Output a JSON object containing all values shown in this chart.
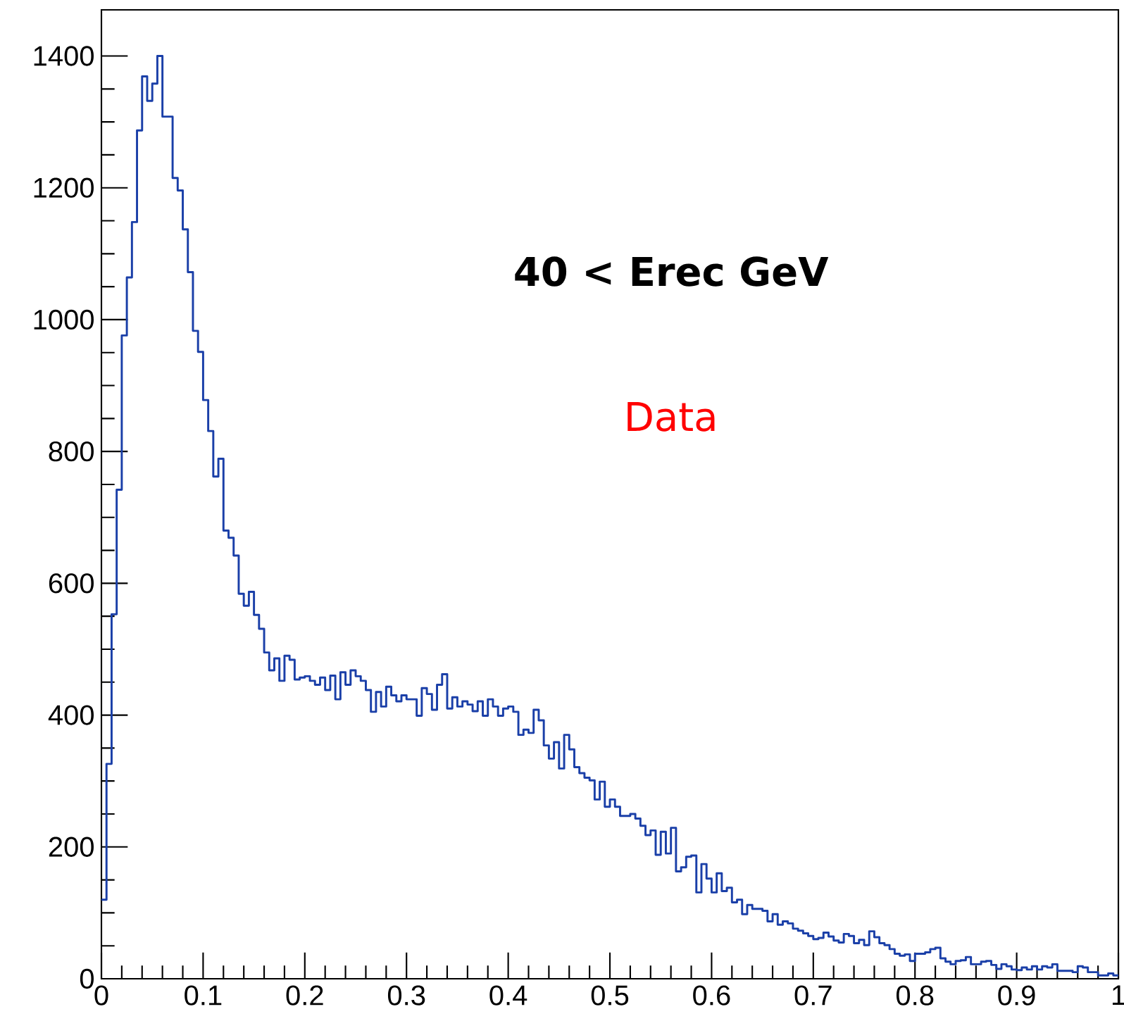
{
  "chart_data": {
    "type": "histogram",
    "color": "#1a3fa8",
    "annotations": [
      "40 < Erec  GeV",
      "Data"
    ],
    "bins": [
      0,
      0.005,
      0.01,
      0.015,
      0.02,
      0.025,
      0.03,
      0.035,
      0.04,
      0.045,
      0.05,
      0.055,
      0.06,
      0.065,
      0.07,
      0.075,
      0.08,
      0.085,
      0.09,
      0.095,
      0.1,
      0.105,
      0.11,
      0.115,
      0.12,
      0.125,
      0.13,
      0.135,
      0.14,
      0.145,
      0.15,
      0.155,
      0.16,
      0.165,
      0.17,
      0.175,
      0.18,
      0.185,
      0.19,
      0.195,
      0.2,
      0.205,
      0.21,
      0.215,
      0.22,
      0.225,
      0.23,
      0.235,
      0.24,
      0.245,
      0.25,
      0.255,
      0.26,
      0.265,
      0.27,
      0.275,
      0.28,
      0.285,
      0.29,
      0.295,
      0.3,
      0.305,
      0.31,
      0.315,
      0.32,
      0.325,
      0.33,
      0.335,
      0.34,
      0.345,
      0.35,
      0.355,
      0.36,
      0.365,
      0.37,
      0.375,
      0.38,
      0.385,
      0.39,
      0.395,
      0.4,
      0.405,
      0.41,
      0.415,
      0.42,
      0.425,
      0.43,
      0.435,
      0.44,
      0.445,
      0.45,
      0.455,
      0.46,
      0.465,
      0.47,
      0.475,
      0.48,
      0.485,
      0.49,
      0.495,
      0.5,
      0.505,
      0.51,
      0.515,
      0.52,
      0.525,
      0.53,
      0.535,
      0.54,
      0.545,
      0.55,
      0.555,
      0.56,
      0.565,
      0.57,
      0.575,
      0.58,
      0.585,
      0.59,
      0.595,
      0.6,
      0.605,
      0.61,
      0.615,
      0.62,
      0.625,
      0.63,
      0.635,
      0.64,
      0.645,
      0.65,
      0.655,
      0.66,
      0.665,
      0.67,
      0.675,
      0.68,
      0.685,
      0.69,
      0.695,
      0.7,
      0.705,
      0.71,
      0.715,
      0.72,
      0.725,
      0.73,
      0.735,
      0.74,
      0.745,
      0.75,
      0.755,
      0.76,
      0.765,
      0.77,
      0.775,
      0.78,
      0.785,
      0.79,
      0.795,
      0.8,
      0.805,
      0.81,
      0.815,
      0.82,
      0.825,
      0.83,
      0.835,
      0.84,
      0.845,
      0.85,
      0.855,
      0.86,
      0.865,
      0.87,
      0.875,
      0.88,
      0.885,
      0.89,
      0.895,
      0.9,
      0.905,
      0.91,
      0.915,
      0.92,
      0.925,
      0.93,
      0.935,
      0.94,
      0.945,
      0.95,
      0.955,
      0.96,
      0.965,
      0.97,
      0.975,
      0.98,
      0.985,
      0.99,
      0.995,
      1
    ],
    "values": [
      120,
      326,
      553,
      742,
      976,
      1064,
      1148,
      1287,
      1369,
      1332,
      1358,
      1400,
      1308,
      1308,
      1215,
      1196,
      1137,
      1072,
      983,
      951,
      878,
      831,
      762,
      789,
      680,
      669,
      642,
      584,
      566,
      587,
      552,
      531,
      495,
      468,
      486,
      452,
      490,
      484,
      454,
      457,
      459,
      452,
      446,
      457,
      438,
      460,
      424,
      465,
      446,
      468,
      459,
      452,
      438,
      405,
      435,
      413,
      443,
      430,
      421,
      430,
      424,
      424,
      399,
      441,
      432,
      408,
      446,
      462,
      410,
      427,
      413,
      421,
      416,
      406,
      421,
      399,
      424,
      413,
      399,
      410,
      413,
      405,
      370,
      378,
      373,
      408,
      392,
      354,
      334,
      359,
      319,
      370,
      348,
      321,
      312,
      305,
      301,
      272,
      299,
      261,
      272,
      261,
      247,
      247,
      250,
      243,
      232,
      218,
      225,
      188,
      223,
      190,
      229,
      163,
      169,
      185,
      187,
      131,
      174,
      152,
      131,
      160,
      133,
      138,
      116,
      120,
      98,
      112,
      106,
      106,
      103,
      87,
      98,
      82,
      87,
      84,
      76,
      73,
      69,
      65,
      60,
      62,
      70,
      64,
      58,
      55,
      68,
      65,
      54,
      59,
      51,
      72,
      63,
      54,
      51,
      45,
      38,
      35,
      37,
      27,
      38,
      38,
      40,
      45,
      47,
      31,
      26,
      22,
      27,
      28,
      33,
      22,
      22,
      26,
      27,
      21,
      15,
      22,
      19,
      14,
      13,
      17,
      14,
      19,
      14,
      19,
      17,
      22,
      12,
      12,
      12,
      10,
      19,
      17,
      10,
      10,
      5,
      5,
      8,
      5
    ],
    "xlim": [
      0,
      1
    ],
    "ylim": [
      0,
      1470
    ],
    "xticks": [
      0,
      0.1,
      0.2,
      0.3,
      0.4,
      0.5,
      0.6,
      0.7,
      0.8,
      0.9,
      1
    ],
    "yticks": [
      0,
      200,
      400,
      600,
      800,
      1000,
      1200,
      1400
    ],
    "grid": false
  }
}
